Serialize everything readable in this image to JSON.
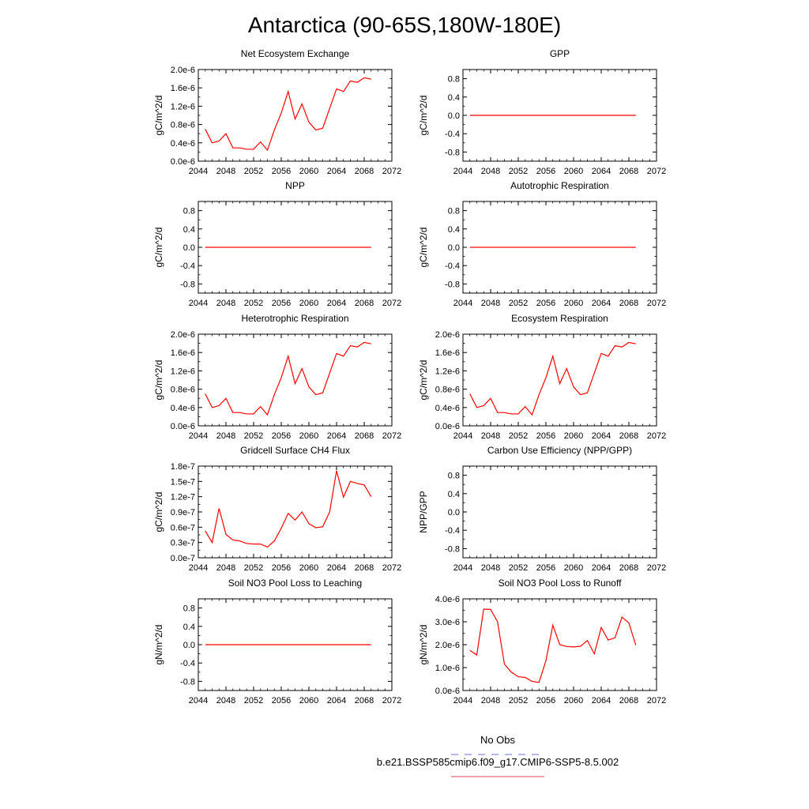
{
  "title": "Antarctica (90-65S,180W-180E)",
  "legend": {
    "entries": [
      {
        "label": "No Obs",
        "color": "#6f6fe0",
        "dash": true
      },
      {
        "label": "b.e21.BSSP585cmip6.f09_g17.CMIP6-SSP5-8.5.002",
        "color": "#e8435a",
        "dash": false
      }
    ]
  },
  "line_color": "#ff0000",
  "chart_data": [
    {
      "type": "line",
      "title": "Net Ecosystem Exchange",
      "ylabel": "gC/m^2/d",
      "xlim": [
        2044,
        2072
      ],
      "xticks": [
        2044,
        2048,
        2052,
        2056,
        2060,
        2064,
        2068,
        2072
      ],
      "ylim": [
        0,
        2e-06
      ],
      "yticks": [
        0,
        4e-07,
        8e-07,
        1.2e-06,
        1.6e-06,
        2e-06
      ],
      "ytick_labels": [
        "0.0e-6",
        "0.4e-6",
        "0.8e-6",
        "1.2e-6",
        "1.6e-6",
        "2.0e-6"
      ],
      "x": [
        2045,
        2046,
        2047,
        2048,
        2049,
        2050,
        2051,
        2052,
        2053,
        2054,
        2055,
        2056,
        2057,
        2058,
        2059,
        2060,
        2061,
        2062,
        2063,
        2064,
        2065,
        2066,
        2067,
        2068,
        2069
      ],
      "y": [
        7e-07,
        4e-07,
        4.4e-07,
        6e-07,
        2.9e-07,
        2.9e-07,
        2.6e-07,
        2.6e-07,
        4.2e-07,
        2.4e-07,
        6.8e-07,
        1.05e-06,
        1.52e-06,
        9.2e-07,
        1.25e-06,
        8.5e-07,
        6.8e-07,
        7.2e-07,
        1.15e-06,
        1.58e-06,
        1.52e-06,
        1.75e-06,
        1.72e-06,
        1.82e-06,
        1.79e-06
      ]
    },
    {
      "type": "line",
      "title": "GPP",
      "ylabel": "gC/m^2/d",
      "xlim": [
        2044,
        2072
      ],
      "xticks": [
        2044,
        2048,
        2052,
        2056,
        2060,
        2064,
        2068,
        2072
      ],
      "ylim": [
        -1,
        1
      ],
      "yticks": [
        -0.8,
        -0.4,
        0,
        0.4,
        0.8
      ],
      "ytick_labels": [
        "-0.8",
        "-0.4",
        "0.0",
        "0.4",
        "0.8"
      ],
      "x": [
        2045,
        2069
      ],
      "y": [
        0,
        0
      ]
    },
    {
      "type": "line",
      "title": "NPP",
      "ylabel": "gC/m^2/d",
      "xlim": [
        2044,
        2072
      ],
      "xticks": [
        2044,
        2048,
        2052,
        2056,
        2060,
        2064,
        2068,
        2072
      ],
      "ylim": [
        -1,
        1
      ],
      "yticks": [
        -0.8,
        -0.4,
        0,
        0.4,
        0.8
      ],
      "ytick_labels": [
        "-0.8",
        "-0.4",
        "0.0",
        "0.4",
        "0.8"
      ],
      "x": [
        2045,
        2069
      ],
      "y": [
        0,
        0
      ]
    },
    {
      "type": "line",
      "title": "Autotrophic Respiration",
      "ylabel": "gC/m^2/d",
      "xlim": [
        2044,
        2072
      ],
      "xticks": [
        2044,
        2048,
        2052,
        2056,
        2060,
        2064,
        2068,
        2072
      ],
      "ylim": [
        -1,
        1
      ],
      "yticks": [
        -0.8,
        -0.4,
        0,
        0.4,
        0.8
      ],
      "ytick_labels": [
        "-0.8",
        "-0.4",
        "0.0",
        "0.4",
        "0.8"
      ],
      "x": [
        2045,
        2069
      ],
      "y": [
        0,
        0
      ]
    },
    {
      "type": "line",
      "title": "Heterotrophic Respiration",
      "ylabel": "gC/m^2/d",
      "xlim": [
        2044,
        2072
      ],
      "xticks": [
        2044,
        2048,
        2052,
        2056,
        2060,
        2064,
        2068,
        2072
      ],
      "ylim": [
        0,
        2e-06
      ],
      "yticks": [
        0,
        4e-07,
        8e-07,
        1.2e-06,
        1.6e-06,
        2e-06
      ],
      "ytick_labels": [
        "0.0e-6",
        "0.4e-6",
        "0.8e-6",
        "1.2e-6",
        "1.6e-6",
        "2.0e-6"
      ],
      "x": [
        2045,
        2046,
        2047,
        2048,
        2049,
        2050,
        2051,
        2052,
        2053,
        2054,
        2055,
        2056,
        2057,
        2058,
        2059,
        2060,
        2061,
        2062,
        2063,
        2064,
        2065,
        2066,
        2067,
        2068,
        2069
      ],
      "y": [
        7e-07,
        4e-07,
        4.4e-07,
        6e-07,
        2.9e-07,
        2.9e-07,
        2.6e-07,
        2.6e-07,
        4.2e-07,
        2.4e-07,
        6.8e-07,
        1.05e-06,
        1.52e-06,
        9.2e-07,
        1.25e-06,
        8.5e-07,
        6.8e-07,
        7.2e-07,
        1.15e-06,
        1.58e-06,
        1.52e-06,
        1.75e-06,
        1.72e-06,
        1.82e-06,
        1.79e-06
      ]
    },
    {
      "type": "line",
      "title": "Ecosystem Respiration",
      "ylabel": "gC/m^2/d",
      "xlim": [
        2044,
        2072
      ],
      "xticks": [
        2044,
        2048,
        2052,
        2056,
        2060,
        2064,
        2068,
        2072
      ],
      "ylim": [
        0,
        2e-06
      ],
      "yticks": [
        0,
        4e-07,
        8e-07,
        1.2e-06,
        1.6e-06,
        2e-06
      ],
      "ytick_labels": [
        "0.0e-6",
        "0.4e-6",
        "0.8e-6",
        "1.2e-6",
        "1.6e-6",
        "2.0e-6"
      ],
      "x": [
        2045,
        2046,
        2047,
        2048,
        2049,
        2050,
        2051,
        2052,
        2053,
        2054,
        2055,
        2056,
        2057,
        2058,
        2059,
        2060,
        2061,
        2062,
        2063,
        2064,
        2065,
        2066,
        2067,
        2068,
        2069
      ],
      "y": [
        7e-07,
        4e-07,
        4.4e-07,
        6e-07,
        2.9e-07,
        2.9e-07,
        2.6e-07,
        2.6e-07,
        4.2e-07,
        2.4e-07,
        6.8e-07,
        1.05e-06,
        1.52e-06,
        9.2e-07,
        1.25e-06,
        8.5e-07,
        6.8e-07,
        7.2e-07,
        1.15e-06,
        1.58e-06,
        1.52e-06,
        1.75e-06,
        1.72e-06,
        1.82e-06,
        1.79e-06
      ]
    },
    {
      "type": "line",
      "title": "Gridcell Surface CH4 Flux",
      "ylabel": "gC/m^2/d",
      "xlim": [
        2044,
        2072
      ],
      "xticks": [
        2044,
        2048,
        2052,
        2056,
        2060,
        2064,
        2068,
        2072
      ],
      "ylim": [
        0,
        1.8e-07
      ],
      "yticks": [
        0,
        3e-08,
        6e-08,
        9e-08,
        1.2e-07,
        1.5e-07,
        1.8e-07
      ],
      "ytick_labels": [
        "0.0e-7",
        "0.3e-7",
        "0.6e-7",
        "0.9e-7",
        "1.2e-7",
        "1.5e-7",
        "1.8e-7"
      ],
      "x": [
        2045,
        2046,
        2047,
        2048,
        2049,
        2050,
        2051,
        2052,
        2053,
        2054,
        2055,
        2056,
        2057,
        2058,
        2059,
        2060,
        2061,
        2062,
        2063,
        2064,
        2065,
        2066,
        2067,
        2068,
        2069
      ],
      "y": [
        5.3e-08,
        3e-08,
        9.7e-08,
        4.6e-08,
        3.5e-08,
        3.3e-08,
        2.8e-08,
        2.7e-08,
        2.7e-08,
        2.1e-08,
        3.3e-08,
        5.8e-08,
        8.7e-08,
        7.4e-08,
        9e-08,
        6.7e-08,
        5.9e-08,
        6.1e-08,
        9e-08,
        1.71e-07,
        1.19e-07,
        1.5e-07,
        1.46e-07,
        1.43e-07,
        1.2e-07
      ]
    },
    {
      "type": "line",
      "title": "Carbon Use Efficiency (NPP/GPP)",
      "ylabel": "NPP/GPP",
      "xlim": [
        2044,
        2072
      ],
      "xticks": [
        2044,
        2048,
        2052,
        2056,
        2060,
        2064,
        2068,
        2072
      ],
      "ylim": [
        -1,
        1
      ],
      "yticks": [
        -0.8,
        -0.4,
        0,
        0.4,
        0.8
      ],
      "ytick_labels": [
        "-0.8",
        "-0.4",
        "0.0",
        "0.4",
        "0.8"
      ],
      "x": [],
      "y": []
    },
    {
      "type": "line",
      "title": "Soil NO3 Pool Loss to Leaching",
      "ylabel": "gN/m^2/d",
      "xlim": [
        2044,
        2072
      ],
      "xticks": [
        2044,
        2048,
        2052,
        2056,
        2060,
        2064,
        2068,
        2072
      ],
      "ylim": [
        -1,
        1
      ],
      "yticks": [
        -0.8,
        -0.4,
        0,
        0.4,
        0.8
      ],
      "ytick_labels": [
        "-0.8",
        "-0.4",
        "0.0",
        "0.4",
        "0.8"
      ],
      "x": [
        2045,
        2069
      ],
      "y": [
        0,
        0
      ]
    },
    {
      "type": "line",
      "title": "Soil NO3 Pool Loss to Runoff",
      "ylabel": "gN/m^2/d",
      "xlim": [
        2044,
        2072
      ],
      "xticks": [
        2044,
        2048,
        2052,
        2056,
        2060,
        2064,
        2068,
        2072
      ],
      "ylim": [
        0,
        4e-06
      ],
      "yticks": [
        0,
        1e-06,
        2e-06,
        3e-06,
        4e-06
      ],
      "ytick_labels": [
        "0.0e-6",
        "1.0e-6",
        "2.0e-6",
        "3.0e-6",
        "4.0e-6"
      ],
      "x": [
        2045,
        2046,
        2047,
        2048,
        2049,
        2050,
        2051,
        2052,
        2053,
        2054,
        2055,
        2056,
        2057,
        2058,
        2059,
        2060,
        2061,
        2062,
        2063,
        2064,
        2065,
        2066,
        2067,
        2068,
        2069
      ],
      "y": [
        1.75e-06,
        1.55e-06,
        3.55e-06,
        3.54e-06,
        3e-06,
        1.15e-06,
        8e-07,
        6e-07,
        5.7e-07,
        4e-07,
        3.5e-07,
        1.3e-06,
        2.85e-06,
        2e-06,
        1.92e-06,
        1.9e-06,
        1.93e-06,
        2.18e-06,
        1.6e-06,
        2.75e-06,
        2.2e-06,
        2.3e-06,
        3.2e-06,
        2.95e-06,
        1.98e-06
      ]
    }
  ]
}
